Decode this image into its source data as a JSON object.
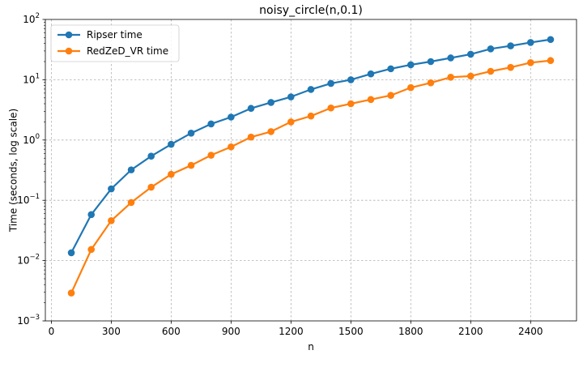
{
  "chart_data": {
    "type": "line",
    "title": "noisy_circle(n,0.1)",
    "xlabel": "n",
    "ylabel": "Time (seconds, log scale)",
    "xlim": [
      -30,
      2630
    ],
    "xticks": [
      0,
      300,
      600,
      900,
      1200,
      1500,
      1800,
      2100,
      2400
    ],
    "yscale": "log",
    "ylim": [
      0.001,
      100
    ],
    "yticks": [
      {
        "value": 0.001,
        "base": "10",
        "exp": "−3"
      },
      {
        "value": 0.01,
        "base": "10",
        "exp": "−2"
      },
      {
        "value": 0.1,
        "base": "10",
        "exp": "−1"
      },
      {
        "value": 1,
        "base": "10",
        "exp": "0"
      },
      {
        "value": 10,
        "base": "10",
        "exp": "1"
      },
      {
        "value": 100,
        "base": "10",
        "exp": "2"
      }
    ],
    "grid": true,
    "legend_position": "top-left",
    "x": [
      100,
      200,
      300,
      400,
      500,
      600,
      700,
      800,
      900,
      1000,
      1100,
      1200,
      1300,
      1400,
      1500,
      1600,
      1700,
      1800,
      1900,
      2000,
      2100,
      2200,
      2300,
      2400,
      2500
    ],
    "series": [
      {
        "name": "Ripser time",
        "color": "#1f77b4",
        "values": [
          0.0135,
          0.058,
          0.155,
          0.32,
          0.54,
          0.85,
          1.3,
          1.85,
          2.4,
          3.35,
          4.2,
          5.2,
          6.9,
          8.7,
          10.0,
          12.5,
          15.2,
          17.7,
          20.0,
          23.0,
          26.5,
          32.5,
          36.5,
          41.5,
          46.5
        ]
      },
      {
        "name": "RedZeD_VR time",
        "color": "#ff7f0e",
        "values": [
          0.0029,
          0.0153,
          0.046,
          0.092,
          0.165,
          0.27,
          0.38,
          0.56,
          0.77,
          1.12,
          1.38,
          2.0,
          2.5,
          3.4,
          4.0,
          4.7,
          5.5,
          7.4,
          8.9,
          11.0,
          11.5,
          13.8,
          16.0,
          19.2,
          20.8
        ]
      }
    ]
  }
}
